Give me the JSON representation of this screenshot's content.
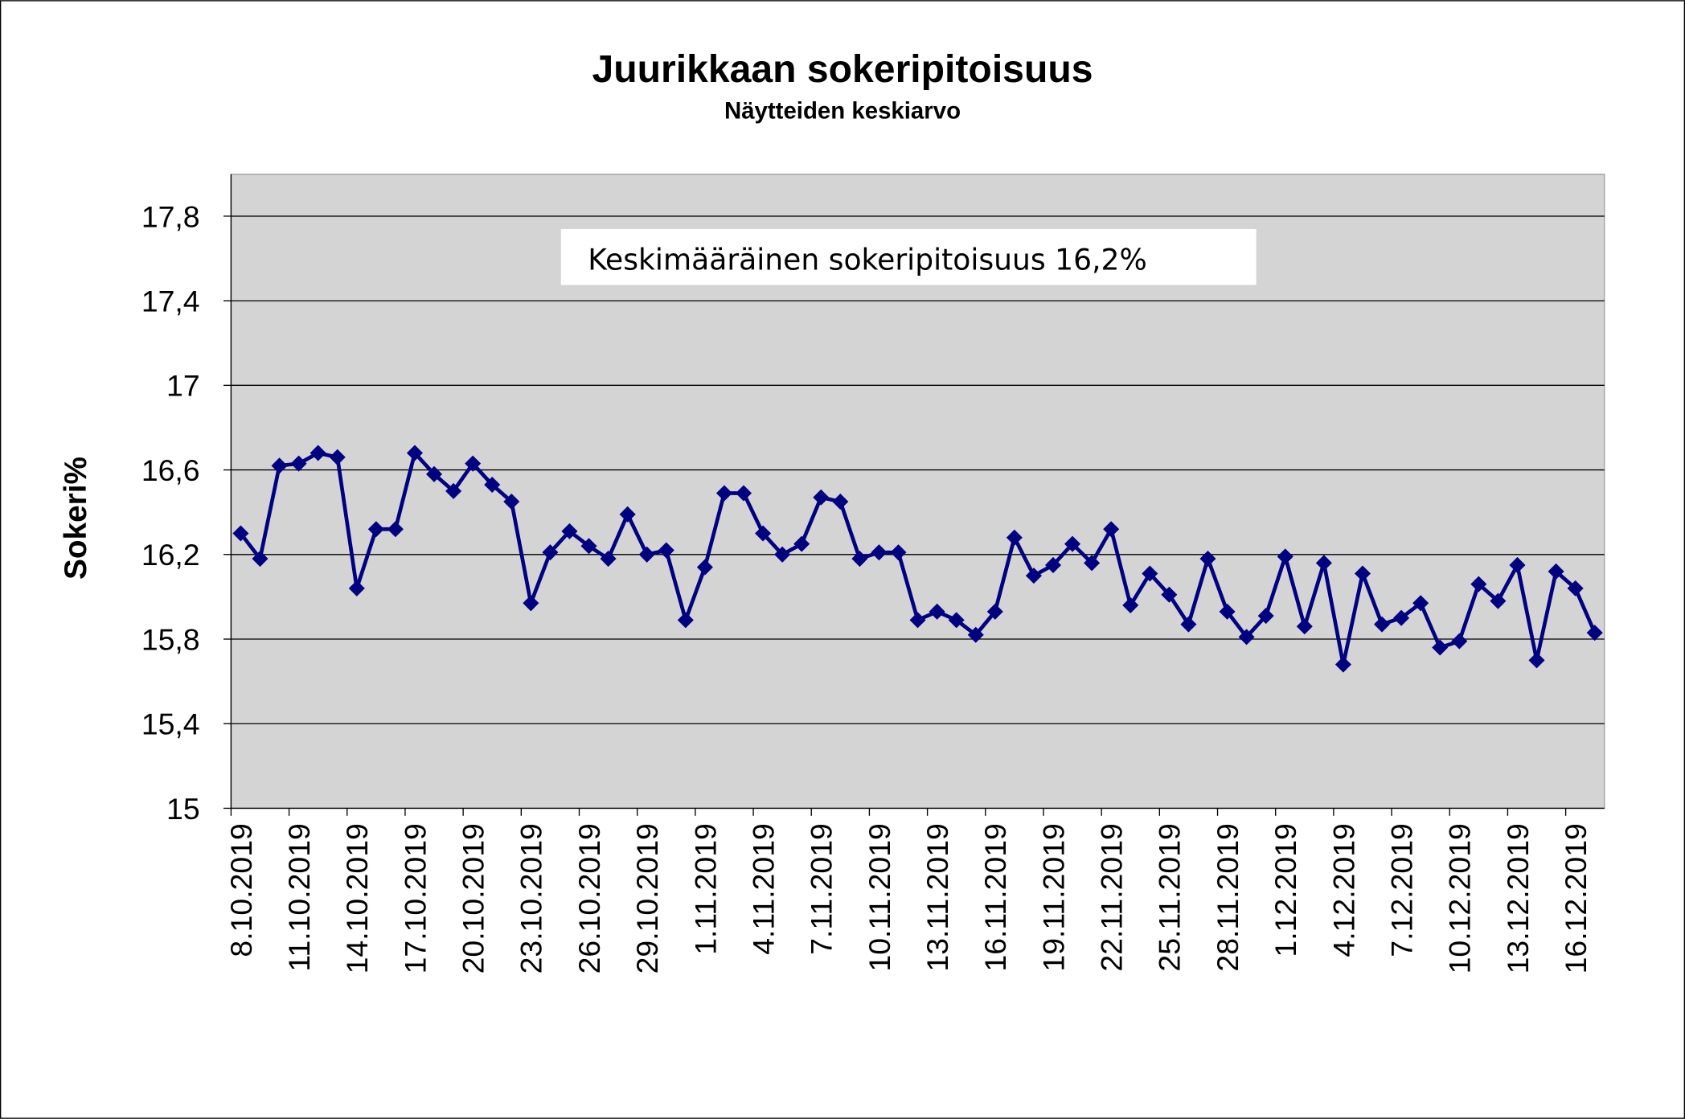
{
  "chart_data": {
    "type": "line",
    "title": "Juurikkaan sokeripitoisuus",
    "subtitle": "Näytteiden keskiarvo",
    "ylabel": "Sokeri%",
    "xlabel": "",
    "ylim": [
      15,
      17.8
    ],
    "yticks": [
      "15",
      "15,4",
      "15,8",
      "16,2",
      "16,6",
      "17",
      "17,4",
      "17,8"
    ],
    "ytick_values": [
      15,
      15.4,
      15.8,
      16.2,
      16.6,
      17,
      17.4,
      17.8
    ],
    "x_tick_labels": [
      "8.10.2019",
      "11.10.2019",
      "14.10.2019",
      "17.10.2019",
      "20.10.2019",
      "23.10.2019",
      "26.10.2019",
      "29.10.2019",
      "1.11.2019",
      "4.11.2019",
      "7.11.2019",
      "10.11.2019",
      "13.11.2019",
      "16.11.2019",
      "19.11.2019",
      "22.11.2019",
      "25.11.2019",
      "28.11.2019",
      "1.12.2019",
      "4.12.2019",
      "7.12.2019",
      "10.12.2019",
      "13.12.2019",
      "16.12.2019"
    ],
    "x_tick_every_days": 3,
    "annotation": "Keskimääräinen sokeripitoisuus 16,2%",
    "grid": true,
    "legend": "none",
    "line_color": "#000080",
    "plot_background": "#d4d4d4",
    "marker": "diamond",
    "values": [
      16.3,
      16.18,
      16.62,
      16.63,
      16.68,
      16.66,
      16.04,
      16.32,
      16.32,
      16.68,
      16.58,
      16.5,
      16.63,
      16.53,
      16.45,
      15.97,
      16.21,
      16.31,
      16.24,
      16.18,
      16.39,
      16.2,
      16.22,
      15.89,
      16.14,
      16.49,
      16.49,
      16.3,
      16.2,
      16.25,
      16.47,
      16.45,
      16.18,
      16.21,
      16.21,
      15.89,
      15.93,
      15.89,
      15.82,
      15.93,
      16.28,
      16.1,
      16.15,
      16.25,
      16.16,
      16.32,
      15.96,
      16.11,
      16.01,
      15.87,
      16.18,
      15.93,
      15.81,
      15.91,
      16.19,
      15.86,
      16.16,
      15.68,
      16.11,
      15.87,
      15.9,
      15.97,
      15.76,
      15.79,
      16.06,
      15.98,
      16.15,
      15.7,
      16.12,
      16.04,
      15.83
    ]
  }
}
